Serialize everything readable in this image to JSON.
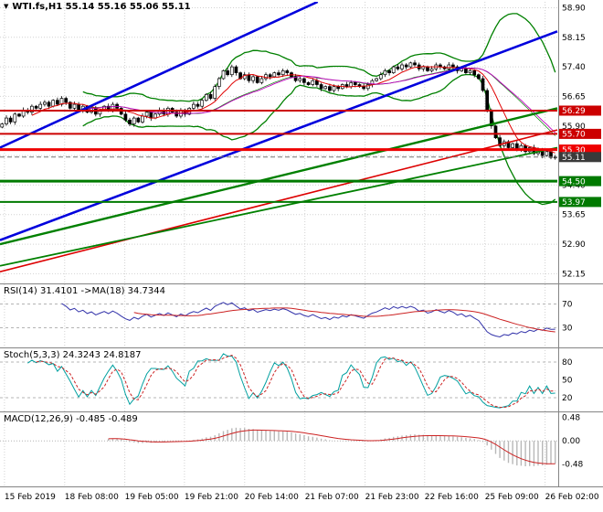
{
  "window": {
    "title": "WTI.fs,H1 55.14 55.16 55.06 55.11",
    "symbol": "WTI.fs",
    "timeframe": "H1"
  },
  "chart_data": {
    "type": "candlestick",
    "title": "WTI.fs,H1",
    "current_bar": {
      "open": 55.14,
      "high": 55.16,
      "low": 55.06,
      "close": 55.11
    },
    "price_axis": {
      "min": 51.95,
      "max": 59.05,
      "ticks": [
        "58.90",
        "58.15",
        "57.40",
        "56.65",
        "55.90",
        "55.15",
        "54.40",
        "53.65",
        "52.90",
        "52.15"
      ]
    },
    "x_axis": {
      "labels": [
        "15 Feb 2019",
        "18 Feb 08:00",
        "19 Feb 05:00",
        "19 Feb 21:00",
        "20 Feb 14:00",
        "21 Feb 07:00",
        "21 Feb 23:00",
        "22 Feb 16:00",
        "25 Feb 09:00",
        "26 Feb 02:00"
      ],
      "positions": [
        0.008,
        0.116,
        0.224,
        0.331,
        0.439,
        0.547,
        0.655,
        0.762,
        0.87,
        0.978
      ]
    },
    "closes": [
      55.95,
      56.1,
      56.0,
      56.2,
      56.15,
      56.3,
      56.25,
      56.4,
      56.35,
      56.45,
      56.5,
      56.4,
      56.55,
      56.45,
      56.6,
      56.5,
      56.35,
      56.45,
      56.3,
      56.4,
      56.25,
      56.35,
      56.2,
      56.3,
      56.4,
      56.3,
      56.45,
      56.35,
      56.2,
      56.05,
      55.95,
      56.1,
      56.0,
      56.15,
      56.25,
      56.1,
      56.2,
      56.3,
      56.2,
      56.35,
      56.25,
      56.15,
      56.3,
      56.2,
      56.35,
      56.45,
      56.4,
      56.55,
      56.7,
      56.6,
      56.9,
      57.1,
      57.3,
      57.2,
      57.4,
      57.25,
      57.1,
      57.2,
      57.05,
      57.15,
      57.0,
      57.1,
      57.2,
      57.15,
      57.25,
      57.2,
      57.3,
      57.25,
      57.15,
      57.05,
      57.1,
      57.0,
      56.95,
      57.05,
      56.95,
      56.85,
      56.9,
      56.8,
      56.9,
      56.85,
      56.95,
      56.9,
      57.0,
      56.95,
      56.9,
      56.85,
      56.95,
      57.05,
      57.1,
      57.2,
      57.3,
      57.25,
      57.4,
      57.35,
      57.45,
      57.4,
      57.5,
      57.45,
      57.35,
      57.4,
      57.3,
      57.35,
      57.45,
      57.4,
      57.35,
      57.45,
      57.4,
      57.3,
      57.35,
      57.25,
      57.3,
      57.2,
      57.1,
      56.8,
      56.3,
      55.9,
      55.6,
      55.4,
      55.5,
      55.35,
      55.45,
      55.3,
      55.4,
      55.25,
      55.35,
      55.2,
      55.3,
      55.15,
      55.25,
      55.1,
      55.11
    ],
    "candle_colors": {
      "bull": "#ffffff",
      "bear": "#000000",
      "outline": "#000000"
    },
    "overlays": {
      "bollinger": {
        "period": 20,
        "deviation": 2.5,
        "color": "#008000"
      },
      "ma_fast": {
        "period": 8,
        "color": "#e00000"
      },
      "ma_slow": {
        "period": 21,
        "color": "#c000c0"
      }
    },
    "trendlines": [
      {
        "x1": 0.0,
        "p1": 55.35,
        "x2": 0.57,
        "p2": 59.05,
        "color": "#0000dd",
        "width": 2.6
      },
      {
        "x1": 0.0,
        "p1": 53.0,
        "x2": 1.0,
        "p2": 58.3,
        "color": "#0000dd",
        "width": 2.6
      },
      {
        "x1": 0.0,
        "p1": 52.2,
        "x2": 1.0,
        "p2": 55.8,
        "color": "#dd0000",
        "width": 1.6
      },
      {
        "x1": 0.0,
        "p1": 52.9,
        "x2": 1.0,
        "p2": 56.35,
        "color": "#008000",
        "width": 2.4
      },
      {
        "x1": 0.0,
        "p1": 52.35,
        "x2": 1.0,
        "p2": 55.35,
        "color": "#008000",
        "width": 1.8
      }
    ],
    "levels": [
      {
        "price": 56.29,
        "color": "#cc0000",
        "width": 2,
        "badge": true
      },
      {
        "price": 55.7,
        "color": "#cc0000",
        "width": 2,
        "badge": true
      },
      {
        "price": 55.3,
        "color": "#ee0000",
        "width": 3,
        "badge": true
      },
      {
        "price": 55.11,
        "color": "#777777",
        "width": 1,
        "style": "dash",
        "badge": true,
        "badge_color": "#3a3a3a"
      },
      {
        "price": 54.5,
        "color": "#007a00",
        "width": 3,
        "badge": true
      },
      {
        "price": 53.97,
        "color": "#007a00",
        "width": 2,
        "badge": true
      }
    ]
  },
  "indicators": [
    {
      "name": "rsi",
      "label": "RSI(14) 31.4101 ->MA(18) 34.7344",
      "value": 31.4101,
      "ma_value": 34.7344,
      "levels": [
        70,
        30
      ],
      "axis_labels": [
        "70",
        "30"
      ],
      "colors": {
        "line": "#3333aa",
        "ma": "#cc2222"
      }
    },
    {
      "name": "stoch",
      "label": "Stoch(5,3,3) 24.3243 24.8187",
      "value": 24.3243,
      "signal_value": 24.8187,
      "levels": [
        80,
        20
      ],
      "axis_labels": [
        "80",
        "50",
        "20"
      ],
      "colors": {
        "k": "#00a0a0",
        "d": "#cc2222"
      }
    },
    {
      "name": "macd",
      "label": "MACD(12,26,9) -0.485 -0.489",
      "value": -0.485,
      "signal_value": -0.489,
      "range": [
        -0.9,
        0.55
      ],
      "axis_labels": [
        "0.48",
        "0.00",
        "-0.48"
      ],
      "colors": {
        "hist": "#b8b8b8",
        "signal": "#cc2222"
      }
    }
  ]
}
